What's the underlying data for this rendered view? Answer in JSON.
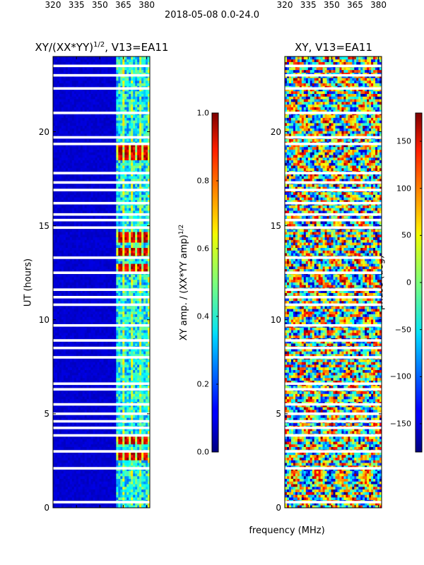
{
  "suptitle": "2018-05-08 0.0-24.0",
  "chart_data": [
    {
      "type": "heatmap",
      "title": "XY/(XX*YY)^{1/2}, V13=EA11",
      "title_main": "XY/(XX*YY)",
      "title_sup": "1/2",
      "title_tail": ", V13=EA11",
      "xlabel": "frequency (MHz)",
      "ylabel": "UT (hours)",
      "xlim": [
        320,
        382
      ],
      "ylim": [
        0,
        24
      ],
      "xticks": [
        "320",
        "335",
        "350",
        "365",
        "380"
      ],
      "xtick_values": [
        320,
        335,
        350,
        365,
        380
      ],
      "yticks": [
        "0",
        "5",
        "10",
        "15",
        "20"
      ],
      "ytick_values": [
        0,
        5,
        10,
        15,
        20
      ],
      "colormap": "jet",
      "colorbar": {
        "label": "XY amp. / (XX*YY amp)^{1/2}",
        "label_main": "XY amp. / (XX*YY amp)",
        "label_sup": "1/2",
        "range": [
          0.0,
          1.0
        ],
        "ticks": [
          "0.0",
          "0.2",
          "0.4",
          "0.6",
          "0.8",
          "1.0"
        ],
        "tick_values": [
          0.0,
          0.2,
          0.4,
          0.6,
          0.8,
          1.0
        ]
      },
      "background_level": 0.08,
      "active_band_mhz": [
        360,
        382
      ],
      "high_amplitude_times_ut": [
        2.8,
        3.6,
        12.8,
        13.6,
        14.4,
        18.7,
        19.1
      ]
    },
    {
      "type": "heatmap",
      "title": "XY, V13=EA11",
      "xlabel": "frequency (MHz)",
      "ylabel": "",
      "xlim": [
        320,
        382
      ],
      "ylim": [
        0,
        24
      ],
      "xticks": [
        "320",
        "335",
        "350",
        "365",
        "380"
      ],
      "xtick_values": [
        320,
        335,
        350,
        365,
        380
      ],
      "yticks": [
        "0",
        "5",
        "10",
        "15",
        "20"
      ],
      "ytick_values": [
        0,
        5,
        10,
        15,
        20
      ],
      "colormap": "jet",
      "colorbar": {
        "label": "phase (deg)",
        "range": [
          -180,
          180
        ],
        "ticks": [
          "−150",
          "−100",
          "−50",
          "0",
          "50",
          "100",
          "150"
        ],
        "tick_values": [
          -150,
          -100,
          -50,
          0,
          50,
          100,
          150
        ]
      }
    }
  ],
  "flagged_gaps_ut": [
    0.3,
    2.1,
    3.0,
    3.85,
    4.25,
    4.6,
    5.0,
    5.5,
    6.3,
    6.6,
    8.0,
    8.5,
    8.9,
    9.7,
    10.8,
    11.2,
    11.6,
    12.5,
    13.3,
    14.9,
    15.3,
    15.6,
    16.2,
    16.9,
    17.3,
    17.8,
    19.35,
    19.7,
    21.0,
    22.3,
    23.0,
    23.5
  ]
}
